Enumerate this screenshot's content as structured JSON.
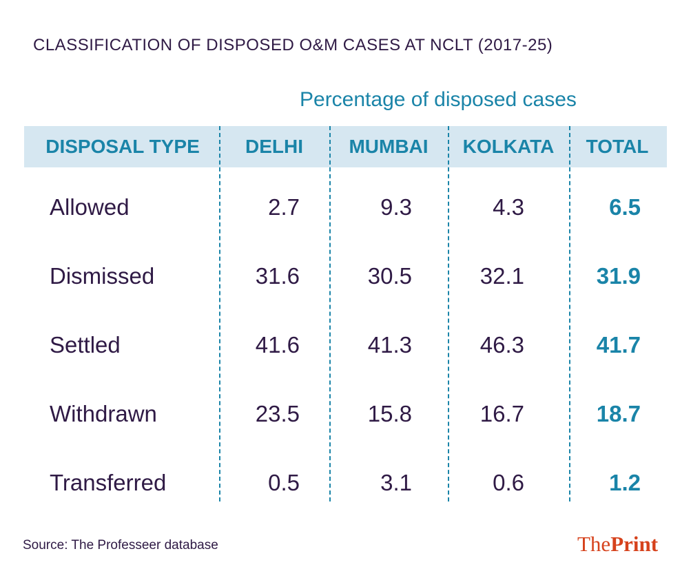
{
  "chart_data": {
    "type": "table",
    "title": "CLASSIFICATION OF DISPOSED O&M CASES AT NCLT (2017-25)",
    "subtitle": "Percentage of disposed cases",
    "columns": [
      "DISPOSAL TYPE",
      "DELHI",
      "MUMBAI",
      "KOLKATA",
      "TOTAL"
    ],
    "rows": [
      {
        "type": "Allowed",
        "values": [
          "2.7",
          "9.3",
          "4.3",
          "6.5"
        ]
      },
      {
        "type": "Dismissed",
        "values": [
          "31.6",
          "30.5",
          "32.1",
          "31.9"
        ]
      },
      {
        "type": "Settled",
        "values": [
          "41.6",
          "41.3",
          "46.3",
          "41.7"
        ]
      },
      {
        "type": "Withdrawn",
        "values": [
          "23.5",
          "15.8",
          "16.7",
          "18.7"
        ]
      },
      {
        "type": "Transferred",
        "values": [
          "0.5",
          "3.1",
          "0.6",
          "1.2"
        ]
      }
    ],
    "colors": {
      "text": "#2f1a45",
      "accent": "#1a84a8",
      "header_band": "#d6e7f1",
      "logo": "#d6421c"
    }
  },
  "footer": {
    "source": "Source: The Professeer database",
    "logo_the": "The",
    "logo_print": "Print"
  }
}
